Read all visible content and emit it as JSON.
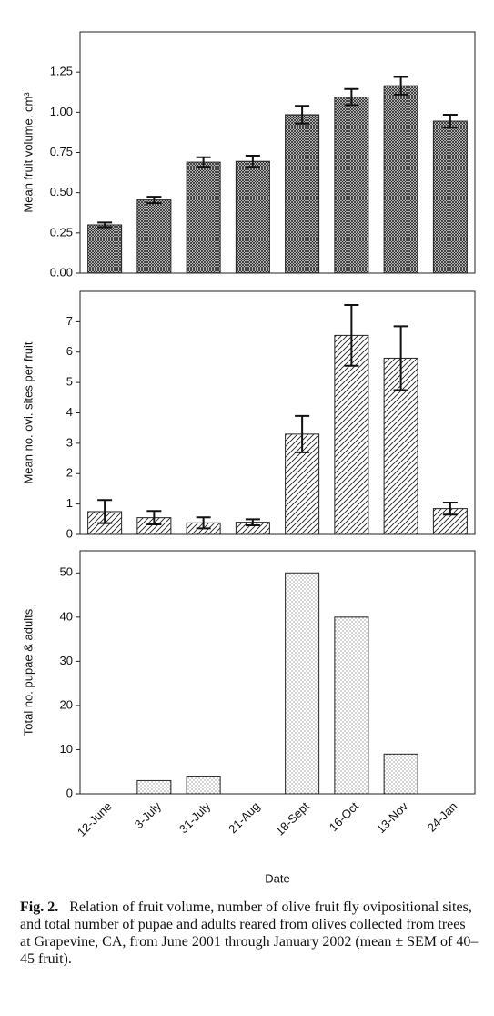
{
  "chart_data": [
    {
      "type": "bar",
      "y_label": "Mean fruit volume, cm³",
      "values": [
        0.3,
        0.455,
        0.69,
        0.695,
        0.985,
        1.095,
        1.165,
        0.945
      ],
      "errors": [
        0.015,
        0.02,
        0.03,
        0.035,
        0.055,
        0.05,
        0.055,
        0.04
      ],
      "ylim": [
        0,
        1.5
      ],
      "yticks": [
        {
          "value": 0,
          "label": "0.00"
        },
        {
          "value": 0.25,
          "label": "0.25"
        },
        {
          "value": 0.5,
          "label": "0.50"
        },
        {
          "value": 0.75,
          "label": "0.75"
        },
        {
          "value": 1,
          "label": "1.00"
        },
        {
          "value": 1.25,
          "label": "1.25"
        }
      ]
    },
    {
      "type": "bar",
      "y_label": "Mean no. ovi. sites per fruit",
      "values": [
        0.75,
        0.55,
        0.38,
        0.4,
        3.3,
        6.55,
        5.8,
        0.85
      ],
      "errors": [
        0.38,
        0.22,
        0.18,
        0.1,
        0.6,
        1.0,
        1.05,
        0.2
      ],
      "ylim": [
        0,
        8
      ],
      "yticks": [
        0,
        1,
        2,
        3,
        4,
        5,
        6,
        7
      ]
    },
    {
      "type": "bar",
      "y_label": "Total no. pupae & adults",
      "x_label": "Date",
      "categories": [
        "12-June",
        "3-July",
        "31-July",
        "21-Aug",
        "18-Sept",
        "16-Oct",
        "13-Nov",
        "24-Jan"
      ],
      "values": [
        0,
        3,
        4,
        0,
        50,
        40,
        9,
        0
      ],
      "ylim": [
        0,
        55
      ],
      "yticks": [
        0,
        10,
        20,
        30,
        40,
        50
      ]
    }
  ],
  "caption": {
    "label": "Fig. 2.",
    "text": "Relation of fruit volume, number of olive fruit fly ovipositional sites, and total number of pupae and adults reared from olives collected from trees at Grapevine, CA, from June 2001 through January 2002 (mean ± SEM of 40–45 fruit)."
  }
}
